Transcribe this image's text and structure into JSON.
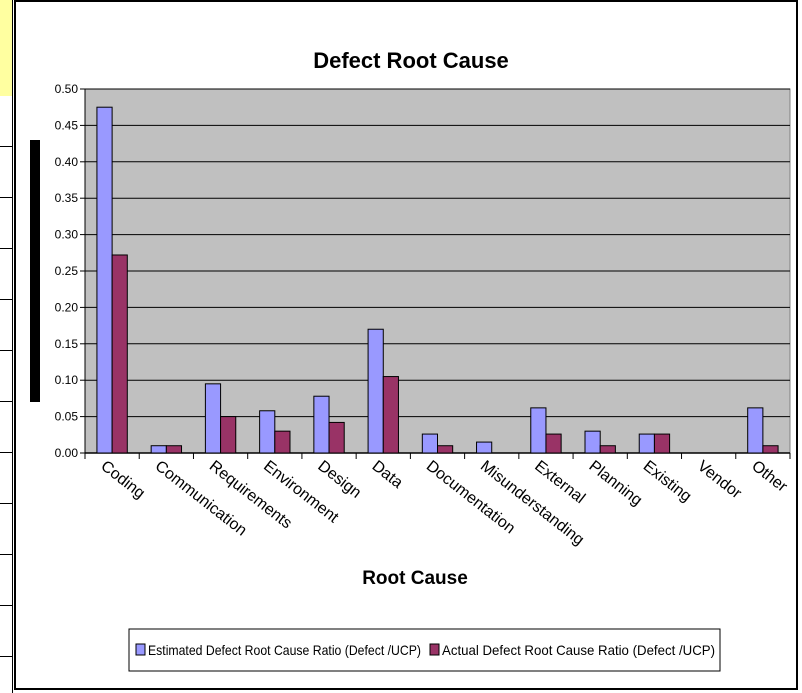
{
  "chart_data": {
    "type": "bar",
    "title": "Defect Root Cause",
    "xlabel": "Root Cause",
    "ylabel": "",
    "ylim": [
      0,
      0.5
    ],
    "yticks": [
      "0.00",
      "0.05",
      "0.10",
      "0.15",
      "0.20",
      "0.25",
      "0.30",
      "0.35",
      "0.40",
      "0.45",
      "0.50"
    ],
    "grid": true,
    "legend": "bottom",
    "categories": [
      "Coding",
      "Communication",
      "Requirements",
      "Environment",
      "Design",
      "Data",
      "Documentation",
      "Misunderstanding",
      "External",
      "Planning",
      "Existing",
      "Vendor",
      "Other"
    ],
    "series": [
      {
        "name": "Estimated Defect Root Cause Ratio (Defect /UCP)",
        "color": "#9999ff",
        "values": [
          0.475,
          0.01,
          0.095,
          0.058,
          0.078,
          0.17,
          0.026,
          0.015,
          0.062,
          0.03,
          0.026,
          0.0,
          0.062
        ]
      },
      {
        "name": "Actual Defect Root Cause Ratio (Defect /UCP)",
        "color": "#993366",
        "values": [
          0.272,
          0.01,
          0.05,
          0.03,
          0.042,
          0.105,
          0.01,
          0.0,
          0.026,
          0.01,
          0.026,
          0.0,
          0.01
        ]
      }
    ],
    "plot_background": "#c0c0c0"
  }
}
